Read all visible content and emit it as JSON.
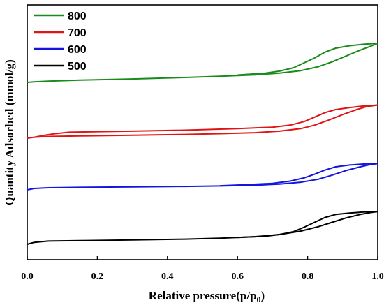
{
  "chart_data": {
    "type": "line",
    "xlabel_main": "Relative pressure(p/p",
    "xlabel_sub": "0",
    "xlabel_end": ")",
    "ylabel": "Quantity Adsorbed (mmol/g)",
    "xlim": [
      0,
      1.0
    ],
    "x_ticks": [
      "0.0",
      "0.2",
      "0.4",
      "0.6",
      "0.8",
      "1.0"
    ],
    "y_tick_labels": "none",
    "legend_position": "top-left",
    "series": [
      {
        "name": "800",
        "color": "#1a8a1a",
        "adsorption": [
          [
            0.0,
            0.0
          ],
          [
            0.02,
            0.01
          ],
          [
            0.06,
            0.025
          ],
          [
            0.15,
            0.045
          ],
          [
            0.3,
            0.07
          ],
          [
            0.45,
            0.1
          ],
          [
            0.55,
            0.125
          ],
          [
            0.65,
            0.155
          ],
          [
            0.72,
            0.19
          ],
          [
            0.78,
            0.24
          ],
          [
            0.83,
            0.32
          ],
          [
            0.87,
            0.42
          ],
          [
            0.91,
            0.54
          ],
          [
            0.95,
            0.66
          ],
          [
            0.98,
            0.74
          ],
          [
            1.0,
            0.8
          ]
        ],
        "desorption": [
          [
            1.0,
            0.8
          ],
          [
            0.96,
            0.78
          ],
          [
            0.92,
            0.75
          ],
          [
            0.88,
            0.7
          ],
          [
            0.85,
            0.62
          ],
          [
            0.82,
            0.5
          ],
          [
            0.79,
            0.4
          ],
          [
            0.76,
            0.3
          ],
          [
            0.72,
            0.23
          ],
          [
            0.68,
            0.19
          ],
          [
            0.6,
            0.15
          ]
        ]
      },
      {
        "name": "700",
        "color": "#e01414",
        "adsorption": [
          [
            0.0,
            0.0
          ],
          [
            0.02,
            0.02
          ],
          [
            0.06,
            0.035
          ],
          [
            0.15,
            0.045
          ],
          [
            0.3,
            0.06
          ],
          [
            0.45,
            0.075
          ],
          [
            0.55,
            0.09
          ],
          [
            0.65,
            0.11
          ],
          [
            0.72,
            0.14
          ],
          [
            0.78,
            0.19
          ],
          [
            0.82,
            0.26
          ],
          [
            0.86,
            0.36
          ],
          [
            0.9,
            0.47
          ],
          [
            0.94,
            0.57
          ],
          [
            0.97,
            0.63
          ],
          [
            1.0,
            0.66
          ]
        ],
        "desorption": [
          [
            1.0,
            0.66
          ],
          [
            0.96,
            0.64
          ],
          [
            0.92,
            0.61
          ],
          [
            0.88,
            0.57
          ],
          [
            0.85,
            0.51
          ],
          [
            0.82,
            0.42
          ],
          [
            0.79,
            0.33
          ],
          [
            0.75,
            0.26
          ],
          [
            0.7,
            0.22
          ],
          [
            0.6,
            0.19
          ],
          [
            0.45,
            0.16
          ],
          [
            0.3,
            0.14
          ],
          [
            0.2,
            0.13
          ],
          [
            0.12,
            0.12
          ],
          [
            0.08,
            0.09
          ],
          [
            0.05,
            0.06
          ],
          [
            0.02,
            0.02
          ]
        ]
      },
      {
        "name": "600",
        "color": "#1414e0",
        "adsorption": [
          [
            0.0,
            0.0
          ],
          [
            0.02,
            0.03
          ],
          [
            0.06,
            0.045
          ],
          [
            0.15,
            0.055
          ],
          [
            0.3,
            0.065
          ],
          [
            0.45,
            0.075
          ],
          [
            0.55,
            0.085
          ],
          [
            0.65,
            0.1
          ],
          [
            0.72,
            0.125
          ],
          [
            0.78,
            0.165
          ],
          [
            0.83,
            0.23
          ],
          [
            0.87,
            0.32
          ],
          [
            0.91,
            0.42
          ],
          [
            0.95,
            0.5
          ],
          [
            0.98,
            0.55
          ],
          [
            1.0,
            0.57
          ]
        ],
        "desorption": [
          [
            1.0,
            0.57
          ],
          [
            0.96,
            0.56
          ],
          [
            0.92,
            0.54
          ],
          [
            0.88,
            0.5
          ],
          [
            0.85,
            0.43
          ],
          [
            0.82,
            0.34
          ],
          [
            0.79,
            0.26
          ],
          [
            0.75,
            0.19
          ],
          [
            0.7,
            0.14
          ],
          [
            0.6,
            0.105
          ],
          [
            0.55,
            0.09
          ]
        ]
      },
      {
        "name": "500",
        "color": "#000000",
        "adsorption": [
          [
            0.0,
            0.0
          ],
          [
            0.02,
            0.04
          ],
          [
            0.06,
            0.065
          ],
          [
            0.15,
            0.075
          ],
          [
            0.3,
            0.09
          ],
          [
            0.45,
            0.105
          ],
          [
            0.55,
            0.125
          ],
          [
            0.65,
            0.155
          ],
          [
            0.72,
            0.2
          ],
          [
            0.78,
            0.27
          ],
          [
            0.83,
            0.36
          ],
          [
            0.87,
            0.45
          ],
          [
            0.91,
            0.54
          ],
          [
            0.95,
            0.61
          ],
          [
            0.98,
            0.65
          ],
          [
            1.0,
            0.67
          ]
        ],
        "desorption": [
          [
            1.0,
            0.67
          ],
          [
            0.96,
            0.66
          ],
          [
            0.92,
            0.64
          ],
          [
            0.88,
            0.61
          ],
          [
            0.85,
            0.55
          ],
          [
            0.82,
            0.45
          ],
          [
            0.79,
            0.35
          ],
          [
            0.76,
            0.26
          ],
          [
            0.72,
            0.2
          ],
          [
            0.68,
            0.165
          ],
          [
            0.6,
            0.14
          ]
        ]
      }
    ]
  }
}
